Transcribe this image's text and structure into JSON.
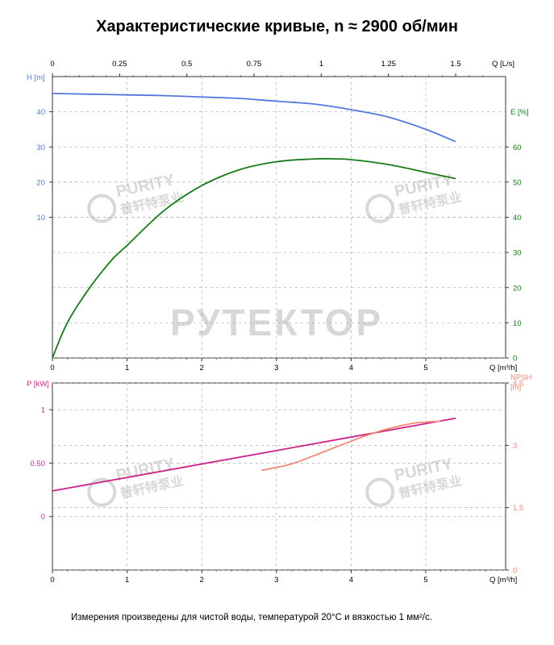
{
  "page": {
    "title": "Характеристические кривые, n ≈ 2900 об/мин",
    "footnote": "Измерения произведены для чистой воды, температурой 20°C и вязкостью 1 мм²/с.",
    "watermark_main": "РУТЕКТОР",
    "watermark_brand": "PURITY",
    "watermark_brand_cn": "普轩特泵业"
  },
  "colors": {
    "head": "#5577dd",
    "efficiency": "#1a7a1a",
    "power": "#cc2288",
    "npsh": "#f08878",
    "axis": "#333333",
    "grid": "#999999",
    "watermark": "#d8d8d8"
  },
  "chart_data": [
    {
      "type": "line",
      "name": "performance",
      "x_label": "Q [m³/h]",
      "x_label_top": "Q [L/s]",
      "x_range": [
        0,
        6
      ],
      "x_ticks": [
        "0",
        "1",
        "2",
        "3",
        "4",
        "5"
      ],
      "x_top_ticks": [
        "0",
        "0.25",
        "0.5",
        "0.75",
        "1",
        "1.25",
        "1.5"
      ],
      "y_left_label": "H [m]",
      "y_left_range": [
        -30,
        50
      ],
      "y_left_ticks": [
        "10",
        "20",
        "30",
        "40"
      ],
      "y_right_label": "E [%]",
      "y_right_range": [
        0,
        80
      ],
      "y_right_ticks": [
        "0",
        "10",
        "20",
        "30",
        "40",
        "50",
        "60"
      ],
      "grid": true,
      "series": [
        {
          "axis": "left",
          "x": [
            0,
            0.5,
            1,
            1.5,
            2,
            2.5,
            3,
            3.5,
            4,
            4.5,
            5,
            5.4
          ],
          "y": [
            45.2,
            45.0,
            44.8,
            44.6,
            44.2,
            43.8,
            43.0,
            42.2,
            40.6,
            38.5,
            35.0,
            31.5
          ]
        },
        {
          "axis": "right",
          "x": [
            0,
            0.2,
            0.5,
            0.8,
            1,
            1.5,
            2,
            2.5,
            3,
            3.5,
            3.8,
            4,
            4.5,
            5,
            5.4
          ],
          "y": [
            0,
            10,
            20,
            28,
            32,
            42,
            49,
            53.5,
            55.8,
            56.6,
            56.6,
            56.4,
            55,
            52.8,
            51
          ]
        }
      ]
    },
    {
      "type": "line",
      "name": "power_npsh",
      "x_label": "Q [m³/h]",
      "x_range": [
        0,
        6
      ],
      "x_ticks": [
        "0",
        "1",
        "2",
        "3",
        "4",
        "5"
      ],
      "y_left_label": "P [kW]",
      "y_left_range": [
        -0.5,
        1.25
      ],
      "y_left_ticks": [
        "0",
        "0.50",
        "1"
      ],
      "y_right_label": "NPSH",
      "y_right_label_2": "[m]",
      "y_right_range": [
        0,
        4.5
      ],
      "y_right_ticks": [
        "0",
        "1.5",
        "3",
        "4.5"
      ],
      "grid": true,
      "series": [
        {
          "axis": "left",
          "x": [
            0,
            5.4
          ],
          "y": [
            0.24,
            0.92
          ]
        },
        {
          "axis": "right",
          "x": [
            2.8,
            3.2,
            3.6,
            4.0,
            4.4,
            4.8,
            5.0,
            5.2
          ],
          "y": [
            2.4,
            2.55,
            2.82,
            3.1,
            3.35,
            3.52,
            3.56,
            3.58
          ]
        }
      ]
    }
  ]
}
